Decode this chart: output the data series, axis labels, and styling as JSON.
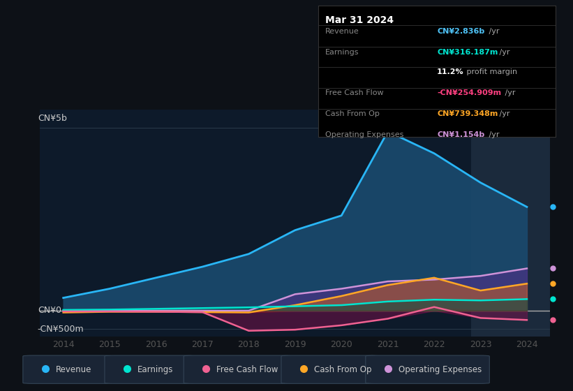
{
  "bg_color": "#0d1117",
  "plot_bg_color": "#0d1a2a",
  "info_title": "Mar 31 2024",
  "info_rows": [
    {
      "label": "Revenue",
      "value": "CN¥2.836b",
      "suffix": " /yr",
      "color": "#4fc3f7"
    },
    {
      "label": "Earnings",
      "value": "CN¥316.187m",
      "suffix": " /yr",
      "color": "#00e5d0"
    },
    {
      "label": "",
      "value": "11.2%",
      "suffix": " profit margin",
      "color": "#ffffff"
    },
    {
      "label": "Free Cash Flow",
      "value": "-CN¥254.909m",
      "suffix": " /yr",
      "color": "#ff4081"
    },
    {
      "label": "Cash From Op",
      "value": "CN¥739.348m",
      "suffix": " /yr",
      "color": "#ffa726"
    },
    {
      "label": "Operating Expenses",
      "value": "CN¥1.154b",
      "suffix": " /yr",
      "color": "#ce93d8"
    }
  ],
  "ylabel_top": "CN¥5b",
  "ylabel_zero": "CN¥0",
  "ylabel_neg": "-CN¥500m",
  "years": [
    2014,
    2015,
    2016,
    2017,
    2018,
    2019,
    2020,
    2021,
    2022,
    2023,
    2024
  ],
  "revenue": [
    0.35,
    0.6,
    0.9,
    1.2,
    1.55,
    2.2,
    2.6,
    4.9,
    4.3,
    3.5,
    2.836
  ],
  "earnings": [
    0.02,
    0.03,
    0.05,
    0.07,
    0.09,
    0.12,
    0.15,
    0.25,
    0.3,
    0.28,
    0.316
  ],
  "free_cash_flow": [
    -0.02,
    -0.02,
    -0.03,
    -0.04,
    -0.55,
    -0.52,
    -0.4,
    -0.22,
    0.1,
    -0.2,
    -0.255
  ],
  "cash_from_op": [
    -0.05,
    -0.03,
    -0.03,
    -0.04,
    -0.05,
    0.15,
    0.4,
    0.7,
    0.9,
    0.55,
    0.739
  ],
  "operating_expenses": [
    0.0,
    0.0,
    0.0,
    0.0,
    0.0,
    0.45,
    0.6,
    0.8,
    0.85,
    0.95,
    1.154
  ],
  "revenue_color": "#29b6f6",
  "revenue_fill": "#1a4a6e",
  "earnings_color": "#00e5d0",
  "fcf_color": "#f06292",
  "cash_op_color": "#ffa726",
  "opex_color": "#ce93d8",
  "highlight_x_start": 2022.8,
  "highlight_x_end": 2024.5,
  "ylim": [
    -0.7,
    5.5
  ],
  "xlim": [
    2013.5,
    2024.5
  ],
  "legend_items": [
    {
      "label": "Revenue",
      "color": "#29b6f6"
    },
    {
      "label": "Earnings",
      "color": "#00e5d0"
    },
    {
      "label": "Free Cash Flow",
      "color": "#f06292"
    },
    {
      "label": "Cash From Op",
      "color": "#ffa726"
    },
    {
      "label": "Operating Expenses",
      "color": "#ce93d8"
    }
  ]
}
